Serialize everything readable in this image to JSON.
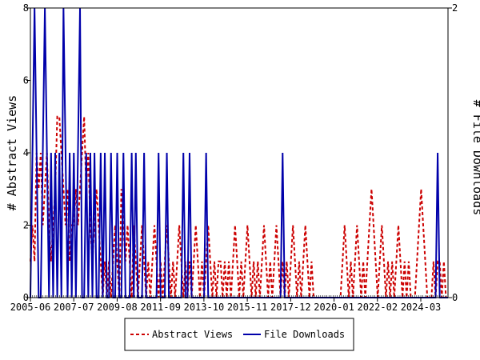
{
  "chart_data": {
    "type": "line",
    "x_tick_labels": [
      "2005-06",
      "2007-07",
      "2009-08",
      "2011-09",
      "2013-10",
      "2015-11",
      "2017-12",
      "2020-01",
      "2022-02",
      "2024-03"
    ],
    "y_left": {
      "label": "# Abstract Views",
      "range": [
        0,
        8
      ],
      "ticks": [
        "0",
        "2",
        "4",
        "6",
        "8"
      ]
    },
    "y_right": {
      "label": "# File Downloads",
      "range": [
        0,
        2
      ],
      "ticks": [
        "0",
        "2"
      ]
    },
    "series": [
      {
        "name": "Abstract Views",
        "axis": "left",
        "color": "#cc0000",
        "style": "dashed",
        "values": [
          1,
          2,
          1,
          4,
          3,
          4,
          2,
          3,
          4,
          2,
          1,
          2,
          3,
          5,
          5,
          4,
          3,
          2,
          3,
          1,
          2,
          2,
          3,
          2,
          3,
          4,
          5,
          3,
          4,
          2,
          1,
          2,
          3,
          2,
          1,
          0,
          1,
          0,
          1,
          0,
          1,
          2,
          1,
          0,
          3,
          2,
          1,
          2,
          1,
          0,
          2,
          1,
          0,
          1,
          2,
          1,
          0,
          1,
          0,
          1,
          2,
          1,
          0,
          1,
          0,
          1,
          2,
          1,
          0,
          1,
          0,
          1,
          2,
          1,
          0,
          1,
          0,
          1,
          0,
          1,
          2,
          1,
          0,
          1,
          0,
          1,
          2,
          1,
          0,
          1,
          0,
          1,
          1,
          0,
          1,
          0,
          1,
          0,
          1,
          2,
          1,
          0,
          1,
          0,
          1,
          2,
          1,
          0,
          1,
          0,
          1,
          0,
          1,
          2,
          1,
          0,
          1,
          0,
          1,
          2,
          1,
          0,
          1,
          0,
          1,
          0,
          1,
          2,
          1,
          0,
          1,
          0,
          1,
          2,
          1,
          0,
          1,
          0,
          0,
          0,
          0,
          0,
          0,
          0,
          0,
          0,
          0,
          0,
          0,
          0,
          0,
          1,
          2,
          1,
          0,
          1,
          0,
          1,
          2,
          1,
          0,
          1,
          0,
          1,
          2,
          3,
          2,
          1,
          0,
          1,
          2,
          1,
          0,
          1,
          0,
          1,
          0,
          1,
          2,
          1,
          0,
          1,
          0,
          1,
          0,
          0,
          0,
          1,
          2,
          3,
          2,
          1,
          0,
          0,
          0,
          1,
          0,
          1,
          1,
          0,
          1,
          0,
          0
        ]
      },
      {
        "name": "File Downloads",
        "axis": "right",
        "color": "#0000aa",
        "style": "solid",
        "values": [
          0,
          1,
          2,
          1,
          0,
          0,
          1,
          2,
          1,
          0,
          1,
          0,
          1,
          0,
          1,
          0,
          2,
          1,
          0,
          1,
          0,
          1,
          0,
          1,
          2,
          0,
          0,
          1,
          0,
          1,
          0,
          1,
          0,
          0,
          1,
          0,
          1,
          0,
          0,
          1,
          0,
          0,
          1,
          0,
          0,
          1,
          0,
          0,
          0,
          1,
          0,
          1,
          0,
          0,
          0,
          1,
          0,
          0,
          0,
          0,
          0,
          0,
          1,
          0,
          0,
          0,
          1,
          0,
          0,
          0,
          0,
          0,
          0,
          0,
          1,
          0,
          0,
          1,
          0,
          0,
          0,
          0,
          0,
          0,
          0,
          1,
          0,
          0,
          0,
          0,
          0,
          0,
          0,
          0,
          0,
          0,
          0,
          0,
          0,
          0,
          0,
          0,
          0,
          0,
          0,
          0,
          0,
          0,
          0,
          0,
          0,
          0,
          0,
          0,
          0,
          0,
          0,
          0,
          0,
          0,
          0,
          0,
          1,
          0,
          0,
          0,
          0,
          0,
          0,
          0,
          0,
          0,
          0,
          0,
          0,
          0,
          0,
          0,
          0,
          0,
          0,
          0,
          0,
          0,
          0,
          0,
          0,
          0,
          0,
          0,
          0,
          0,
          0,
          0,
          0,
          0,
          0,
          0,
          0,
          0,
          0,
          0,
          0,
          0,
          0,
          0,
          0,
          0,
          0,
          0,
          0,
          0,
          0,
          0,
          0,
          0,
          0,
          0,
          0,
          0,
          0,
          0,
          0,
          0,
          0,
          0,
          0,
          0,
          0,
          0,
          0,
          0,
          0,
          0,
          0,
          0,
          0,
          1,
          0,
          0,
          0,
          0,
          0
        ]
      }
    ],
    "grid": false,
    "legend": {
      "placement": "bottom-center",
      "entries": [
        "Abstract Views",
        "File Downloads"
      ]
    }
  }
}
